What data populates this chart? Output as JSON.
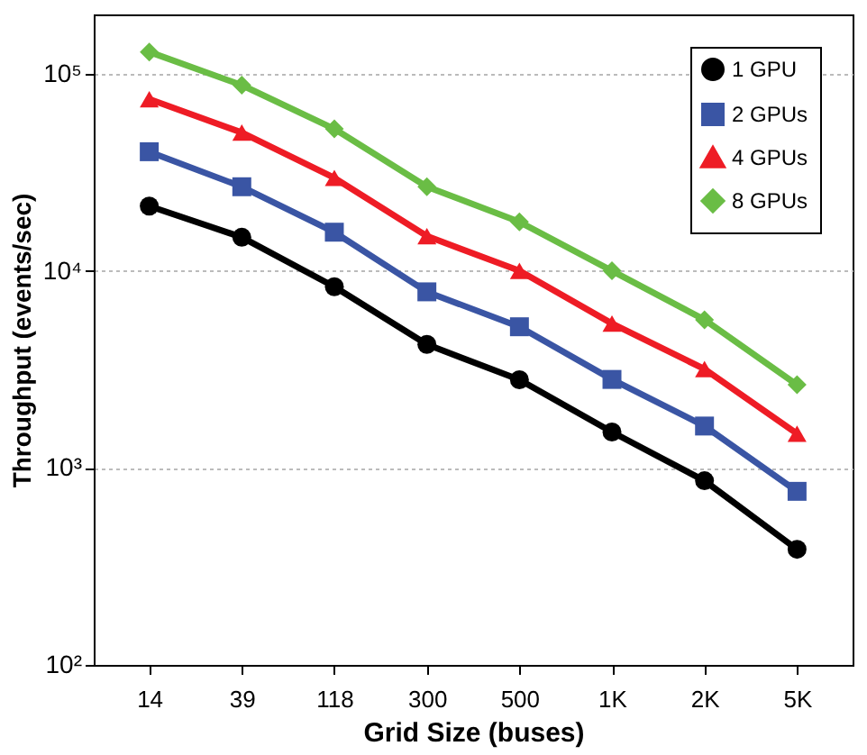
{
  "chart_data": {
    "type": "line",
    "xlabel": "Grid Size (buses)",
    "ylabel": "Throughput (events/sec)",
    "categories": [
      "14",
      "39",
      "118",
      "300",
      "500",
      "1K",
      "2K",
      "5K"
    ],
    "series": [
      {
        "name": "1 GPU",
        "color": "#000000",
        "marker": "circle",
        "values": [
          21300,
          14800,
          8300,
          4230,
          2800,
          1520,
          860,
          386
        ]
      },
      {
        "name": "2 GPUs",
        "color": "#3a55a4",
        "marker": "square",
        "values": [
          40200,
          26700,
          15700,
          7820,
          5200,
          2810,
          1630,
          760
        ]
      },
      {
        "name": "4 GPUs",
        "color": "#ee1c25",
        "marker": "triangle",
        "values": [
          74300,
          50300,
          29600,
          15000,
          10000,
          5400,
          3170,
          1490
        ]
      },
      {
        "name": "8 GPUs",
        "color": "#6abd45",
        "marker": "diamond",
        "values": [
          129000,
          87500,
          52500,
          26700,
          17700,
          10000,
          5640,
          2640
        ]
      }
    ],
    "log": "y",
    "ylim": [
      100,
      200000
    ],
    "yticks": [
      {
        "value": 100,
        "label": "10²"
      },
      {
        "value": 1000,
        "label": "10³"
      },
      {
        "value": 10000,
        "label": "10⁴"
      },
      {
        "value": 100000,
        "label": "10⁵"
      }
    ],
    "grid": "y",
    "legend": "top right",
    "line_style": "solid"
  }
}
